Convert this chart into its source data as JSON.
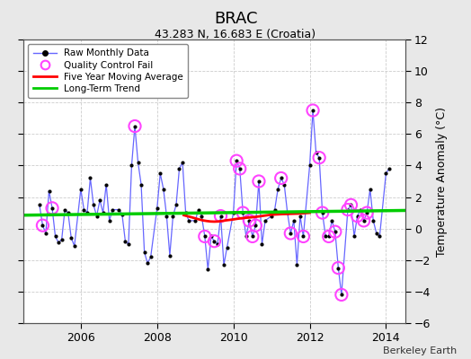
{
  "title": "BRAC",
  "subtitle": "43.283 N, 16.683 E (Croatia)",
  "ylabel": "Temperature Anomaly (°C)",
  "credit": "Berkeley Earth",
  "ylim": [
    -6,
    12
  ],
  "yticks": [
    -6,
    -4,
    -2,
    0,
    2,
    4,
    6,
    8,
    10,
    12
  ],
  "xlim_start": 2004.5,
  "xlim_end": 2014.5,
  "xticks": [
    2006,
    2008,
    2010,
    2012,
    2014
  ],
  "fig_bg_color": "#e8e8e8",
  "plot_bg_color": "#ffffff",
  "grid_color": "#cccccc",
  "line_color": "#6666ff",
  "dot_color": "#000000",
  "ma_color": "#ff0000",
  "trend_color": "#00cc00",
  "qc_color": "#ff44ff",
  "legend_items": [
    "Raw Monthly Data",
    "Quality Control Fail",
    "Five Year Moving Average",
    "Long-Term Trend"
  ],
  "raw_x": [
    2004.917,
    2005.0,
    2005.083,
    2005.167,
    2005.25,
    2005.333,
    2005.417,
    2005.5,
    2005.583,
    2005.667,
    2005.75,
    2005.833,
    2006.0,
    2006.083,
    2006.167,
    2006.25,
    2006.333,
    2006.417,
    2006.5,
    2006.583,
    2006.667,
    2006.75,
    2006.833,
    2007.0,
    2007.083,
    2007.167,
    2007.25,
    2007.333,
    2007.417,
    2007.5,
    2007.583,
    2007.667,
    2007.75,
    2007.833,
    2008.0,
    2008.083,
    2008.167,
    2008.25,
    2008.333,
    2008.417,
    2008.5,
    2008.583,
    2008.667,
    2008.75,
    2008.833,
    2009.0,
    2009.083,
    2009.167,
    2009.25,
    2009.333,
    2009.417,
    2009.5,
    2009.583,
    2009.667,
    2009.75,
    2009.833,
    2010.0,
    2010.083,
    2010.167,
    2010.25,
    2010.333,
    2010.417,
    2010.5,
    2010.583,
    2010.667,
    2010.75,
    2010.833,
    2011.0,
    2011.083,
    2011.167,
    2011.25,
    2011.333,
    2011.417,
    2011.5,
    2011.583,
    2011.667,
    2011.75,
    2011.833,
    2012.0,
    2012.083,
    2012.167,
    2012.25,
    2012.333,
    2012.417,
    2012.5,
    2012.583,
    2012.667,
    2012.75,
    2012.833,
    2013.0,
    2013.083,
    2013.167,
    2013.25,
    2013.333,
    2013.417,
    2013.5,
    2013.583,
    2013.667,
    2013.75,
    2013.833,
    2014.0,
    2014.083
  ],
  "raw_y": [
    1.5,
    0.2,
    -0.3,
    2.4,
    1.3,
    -0.5,
    -0.9,
    -0.7,
    1.2,
    1.0,
    -0.6,
    -1.1,
    2.5,
    1.2,
    1.0,
    3.2,
    1.5,
    0.8,
    1.8,
    1.0,
    2.8,
    0.5,
    1.2,
    1.2,
    0.9,
    -0.8,
    -1.0,
    4.0,
    6.5,
    4.2,
    2.8,
    -1.5,
    -2.2,
    -1.8,
    1.3,
    3.5,
    2.5,
    0.8,
    -1.7,
    0.8,
    1.5,
    3.8,
    4.2,
    1.0,
    0.5,
    0.5,
    1.2,
    0.8,
    -0.5,
    -2.6,
    -0.5,
    -0.8,
    -1.0,
    0.8,
    -2.3,
    -1.2,
    1.0,
    4.3,
    3.8,
    1.0,
    -0.5,
    0.5,
    -0.5,
    0.2,
    3.0,
    -1.0,
    0.5,
    0.8,
    1.2,
    2.5,
    3.2,
    2.8,
    1.0,
    -0.3,
    0.5,
    -2.3,
    0.8,
    -0.5,
    4.0,
    7.5,
    4.8,
    4.5,
    1.0,
    -0.5,
    -0.5,
    0.5,
    -0.2,
    -2.5,
    -4.2,
    1.2,
    1.5,
    -0.5,
    0.8,
    1.2,
    0.5,
    1.0,
    2.5,
    0.5,
    -0.3,
    -0.5,
    3.5,
    3.8
  ],
  "qc_x": [
    2005.0,
    2005.25,
    2007.417,
    2009.25,
    2009.5,
    2009.667,
    2010.083,
    2010.167,
    2010.25,
    2010.417,
    2010.5,
    2010.583,
    2010.667,
    2011.25,
    2011.5,
    2011.833,
    2012.083,
    2012.25,
    2012.333,
    2012.5,
    2012.667,
    2012.75,
    2012.833,
    2013.0,
    2013.083,
    2013.25,
    2013.417,
    2013.5
  ],
  "qc_y": [
    0.2,
    1.3,
    6.5,
    -0.5,
    -0.8,
    0.8,
    4.3,
    3.8,
    1.0,
    0.5,
    -0.5,
    0.2,
    3.0,
    3.2,
    -0.3,
    -0.5,
    7.5,
    4.5,
    1.0,
    -0.5,
    -0.2,
    -2.5,
    -4.2,
    1.2,
    1.5,
    0.8,
    0.5,
    1.0
  ],
  "ma_x": [
    2008.7,
    2008.8,
    2008.9,
    2009.0,
    2009.1,
    2009.2,
    2009.3,
    2009.4,
    2009.5,
    2009.6,
    2009.7,
    2009.8,
    2009.9,
    2010.0,
    2010.1,
    2010.2,
    2010.3,
    2010.5,
    2010.7,
    2010.9,
    2011.0,
    2011.3,
    2011.7,
    2012.0
  ],
  "ma_y": [
    0.85,
    0.78,
    0.72,
    0.65,
    0.58,
    0.52,
    0.48,
    0.45,
    0.44,
    0.45,
    0.48,
    0.52,
    0.55,
    0.58,
    0.62,
    0.65,
    0.68,
    0.72,
    0.78,
    0.85,
    0.88,
    0.92,
    0.95,
    1.0
  ],
  "trend_x": [
    2004.5,
    2014.5
  ],
  "trend_y": [
    0.85,
    1.15
  ]
}
